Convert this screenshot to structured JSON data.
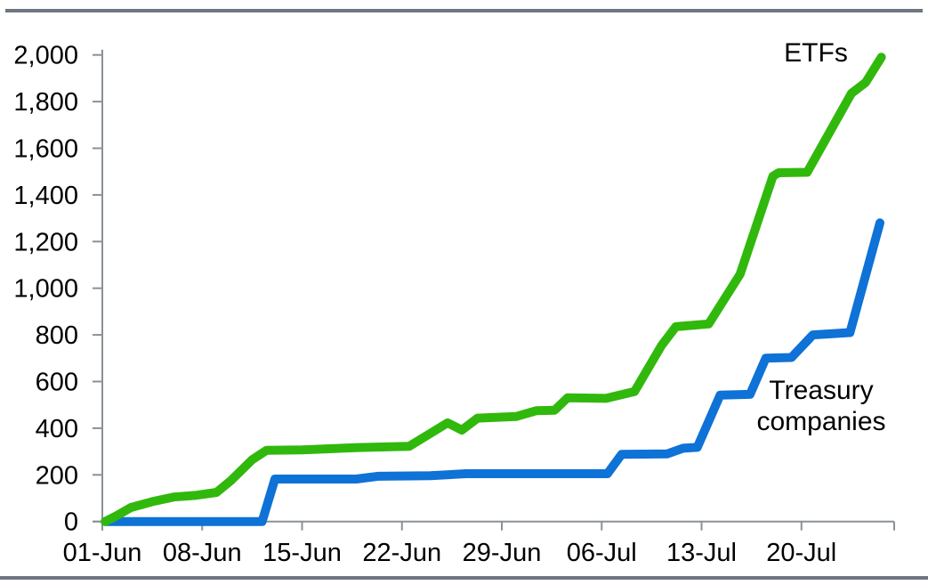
{
  "chart_data": {
    "type": "line",
    "title": "",
    "xlabel": "",
    "ylabel": "",
    "x_axis": {
      "unit": "date",
      "tick_labels": [
        "01-Jun",
        "08-Jun",
        "15-Jun",
        "22-Jun",
        "29-Jun",
        "06-Jul",
        "13-Jul",
        "20-Jul"
      ],
      "tick_day_index": [
        0,
        7,
        14,
        21,
        28,
        35,
        42,
        49
      ],
      "extra_unlabeled_tick_day": 55.5,
      "range_days": [
        0,
        55.5
      ]
    },
    "y_axis": {
      "tick_labels": [
        "0",
        "200",
        "400",
        "600",
        "800",
        "1,000",
        "1,200",
        "1,400",
        "1,600",
        "1,800",
        "2,000"
      ],
      "tick_values": [
        0,
        200,
        400,
        600,
        800,
        1000,
        1200,
        1400,
        1600,
        1800,
        2000
      ],
      "range": [
        0,
        2000
      ],
      "grid": false
    },
    "legend_position": "inline-annotations",
    "axis_color": "#8a9198",
    "series": [
      {
        "name": "Treasury companies",
        "color": "#0e72d6",
        "points": [
          [
            0.2,
            0
          ],
          [
            11.2,
            0
          ],
          [
            12.1,
            182
          ],
          [
            17.8,
            182
          ],
          [
            19.3,
            194
          ],
          [
            23.0,
            196
          ],
          [
            25.5,
            205
          ],
          [
            35.4,
            205
          ],
          [
            36.4,
            288
          ],
          [
            39.6,
            290
          ],
          [
            40.7,
            314
          ],
          [
            41.7,
            318
          ],
          [
            43.3,
            542
          ],
          [
            45.4,
            545
          ],
          [
            46.5,
            700
          ],
          [
            48.3,
            703
          ],
          [
            49.8,
            800
          ],
          [
            52.4,
            810
          ],
          [
            54.5,
            1280
          ]
        ]
      },
      {
        "name": "ETFs",
        "color": "#31b80c",
        "points": [
          [
            0.2,
            0
          ],
          [
            1,
            25
          ],
          [
            2,
            60
          ],
          [
            3.5,
            85
          ],
          [
            5,
            105
          ],
          [
            6.5,
            112
          ],
          [
            8,
            125
          ],
          [
            9,
            175
          ],
          [
            10.5,
            265
          ],
          [
            11.5,
            305
          ],
          [
            14,
            307
          ],
          [
            18,
            317
          ],
          [
            21.5,
            322
          ],
          [
            24.2,
            423
          ],
          [
            25.2,
            392
          ],
          [
            26.3,
            443
          ],
          [
            29,
            450
          ],
          [
            30.4,
            475
          ],
          [
            31.7,
            477
          ],
          [
            32.6,
            530
          ],
          [
            35.3,
            528
          ],
          [
            37.3,
            557
          ],
          [
            39.2,
            755
          ],
          [
            40.2,
            835
          ],
          [
            42.5,
            847
          ],
          [
            44.7,
            1060
          ],
          [
            47.0,
            1480
          ],
          [
            47.4,
            1495
          ],
          [
            49.4,
            1497
          ],
          [
            52.5,
            1835
          ],
          [
            53.5,
            1882
          ],
          [
            54.6,
            1990
          ]
        ]
      }
    ]
  },
  "annotations": {
    "etfs_label": "ETFs",
    "treasury_label": "Treasury companies"
  },
  "decor": {
    "top_rule_color": "#6e7681",
    "bottom_rule_color": "#6e7681"
  }
}
